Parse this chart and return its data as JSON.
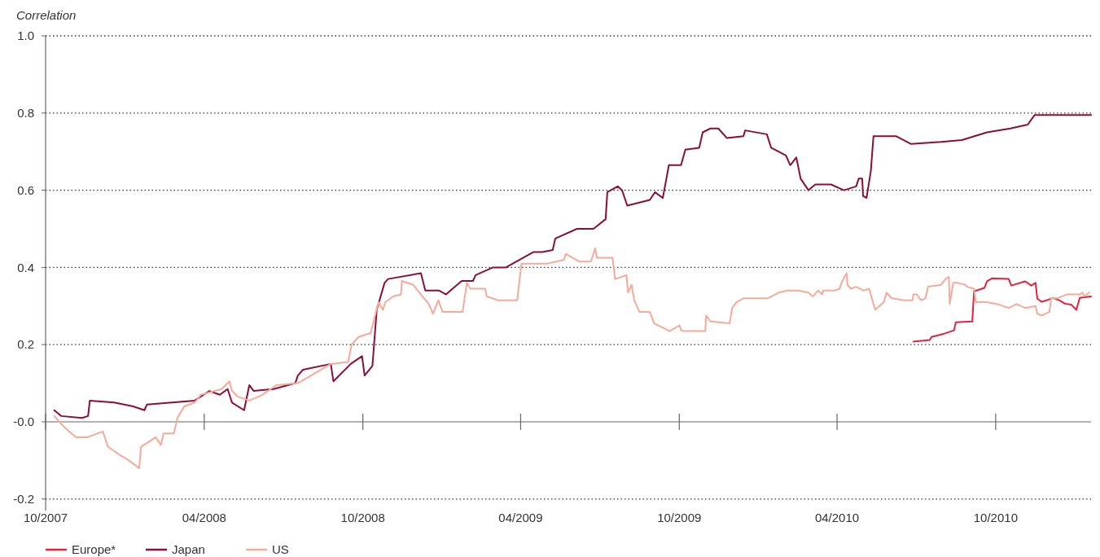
{
  "chart_data": {
    "type": "line",
    "ylabel": "Correlation",
    "xlim": [
      "2007-10-01",
      "2011-01-19"
    ],
    "xticks": [
      {
        "value": "2007-10-01",
        "label": "10/2007"
      },
      {
        "value": "2008-04-01",
        "label": "04/2008"
      },
      {
        "value": "2008-10-01",
        "label": "10/2008"
      },
      {
        "value": "2009-04-01",
        "label": "04/2009"
      },
      {
        "value": "2009-10-01",
        "label": "10/2009"
      },
      {
        "value": "2010-04-01",
        "label": "04/2010"
      },
      {
        "value": "2010-10-01",
        "label": "10/2010"
      }
    ],
    "ylim": [
      -0.23,
      1.0
    ],
    "yticks": [
      -0.2,
      {
        "value": 0,
        "label": "-0.0"
      },
      0.2,
      0.4,
      0.6,
      0.8,
      {
        "value": 1,
        "label": "1.0"
      }
    ],
    "grid": "y",
    "legend": "bottom left",
    "marker": "none",
    "line_style": "solid",
    "series": [
      {
        "name": "Europe*",
        "color": "#e8203a",
        "x": [
          "2010-06-28",
          "2010-07-17",
          "2010-07-19",
          "2010-08-02",
          "2010-08-14",
          "2010-08-16",
          "2010-09-04",
          "2010-09-06",
          "2010-09-18",
          "2010-09-21",
          "2010-09-27",
          "2010-10-16",
          "2010-10-19",
          "2010-11-04",
          "2010-11-11",
          "2010-11-16",
          "2010-11-18",
          "2010-11-23",
          "2010-11-29",
          "2010-12-06",
          "2010-12-13",
          "2010-12-20",
          "2010-12-27",
          "2011-01-02",
          "2011-01-06",
          "2011-01-19"
        ],
        "values": [
          0.208,
          0.212,
          0.22,
          0.228,
          0.237,
          0.258,
          0.26,
          0.338,
          0.347,
          0.364,
          0.372,
          0.37,
          0.353,
          0.364,
          0.353,
          0.36,
          0.319,
          0.311,
          0.315,
          0.321,
          0.315,
          0.306,
          0.304,
          0.29,
          0.321,
          0.325
        ]
      },
      {
        "name": "Japan",
        "color": "#8b0d3a",
        "x": [
          "2007-10-11",
          "2007-10-19",
          "2007-11-12",
          "2007-11-19",
          "2007-11-21",
          "2007-12-19",
          "2008-01-10",
          "2008-01-23",
          "2008-01-26",
          "2008-03-21",
          "2008-04-07",
          "2008-04-19",
          "2008-04-28",
          "2008-05-03",
          "2008-05-17",
          "2008-05-23",
          "2008-05-28",
          "2008-06-20",
          "2008-07-15",
          "2008-07-18",
          "2008-07-24",
          "2008-08-25",
          "2008-08-28",
          "2008-09-17",
          "2008-09-30",
          "2008-10-03",
          "2008-10-12",
          "2008-10-17",
          "2008-10-26",
          "2008-10-30",
          "2008-12-07",
          "2008-12-12",
          "2008-12-28",
          "2009-01-05",
          "2009-01-10",
          "2009-01-23",
          "2009-02-05",
          "2009-02-08",
          "2009-02-28",
          "2009-03-15",
          "2009-03-31",
          "2009-04-16",
          "2009-04-26",
          "2009-05-08",
          "2009-05-11",
          "2009-06-05",
          "2009-06-24",
          "2009-07-08",
          "2009-07-10",
          "2009-07-22",
          "2009-07-27",
          "2009-08-02",
          "2009-08-28",
          "2009-09-03",
          "2009-09-12",
          "2009-09-19",
          "2009-10-03",
          "2009-10-08",
          "2009-10-24",
          "2009-10-28",
          "2009-11-06",
          "2009-11-15",
          "2009-11-25",
          "2009-12-14",
          "2009-12-16",
          "2010-01-10",
          "2010-01-15",
          "2010-02-01",
          "2010-02-06",
          "2010-02-13",
          "2010-02-18",
          "2010-02-27",
          "2010-03-07",
          "2010-03-25",
          "2010-04-09",
          "2010-04-23",
          "2010-04-26",
          "2010-04-30",
          "2010-05-01",
          "2010-05-05",
          "2010-05-10",
          "2010-05-13",
          "2010-06-08",
          "2010-06-25",
          "2010-07-30",
          "2010-08-23",
          "2010-09-21",
          "2010-10-18",
          "2010-11-07",
          "2010-11-15",
          "2011-01-19"
        ],
        "values": [
          0.03,
          0.015,
          0.01,
          0.015,
          0.055,
          0.05,
          0.04,
          0.03,
          0.045,
          0.055,
          0.08,
          0.07,
          0.085,
          0.05,
          0.03,
          0.095,
          0.08,
          0.085,
          0.1,
          0.12,
          0.135,
          0.15,
          0.105,
          0.15,
          0.17,
          0.12,
          0.145,
          0.29,
          0.36,
          0.37,
          0.385,
          0.34,
          0.34,
          0.33,
          0.34,
          0.365,
          0.365,
          0.38,
          0.4,
          0.4,
          0.42,
          0.44,
          0.44,
          0.445,
          0.475,
          0.5,
          0.5,
          0.525,
          0.595,
          0.61,
          0.6,
          0.56,
          0.575,
          0.595,
          0.58,
          0.665,
          0.665,
          0.705,
          0.71,
          0.75,
          0.76,
          0.76,
          0.735,
          0.74,
          0.755,
          0.745,
          0.71,
          0.69,
          0.665,
          0.685,
          0.63,
          0.6,
          0.615,
          0.615,
          0.6,
          0.61,
          0.63,
          0.63,
          0.585,
          0.58,
          0.65,
          0.74,
          0.74,
          0.72,
          0.725,
          0.73,
          0.75,
          0.76,
          0.77,
          0.795,
          0.795
        ]
      },
      {
        "name": "US",
        "color": "#f7a99a",
        "x": [
          "2007-10-11",
          "2007-10-23",
          "2007-11-05",
          "2007-11-18",
          "2007-12-06",
          "2007-12-12",
          "2007-12-25",
          "2008-01-05",
          "2008-01-17",
          "2008-01-19",
          "2008-02-05",
          "2008-02-11",
          "2008-02-14",
          "2008-02-26",
          "2008-03-01",
          "2008-03-09",
          "2008-03-21",
          "2008-03-28",
          "2008-04-21",
          "2008-04-30",
          "2008-05-03",
          "2008-05-10",
          "2008-05-23",
          "2008-06-07",
          "2008-06-23",
          "2008-07-18",
          "2008-08-25",
          "2008-09-14",
          "2008-09-18",
          "2008-09-26",
          "2008-10-10",
          "2008-10-19",
          "2008-10-24",
          "2008-10-27",
          "2008-11-05",
          "2008-11-14",
          "2008-11-15",
          "2008-11-28",
          "2008-12-07",
          "2008-12-16",
          "2008-12-21",
          "2008-12-27",
          "2009-01-01",
          "2009-01-24",
          "2009-01-29",
          "2009-02-02",
          "2009-02-19",
          "2009-02-21",
          "2009-03-06",
          "2009-03-28",
          "2009-04-02",
          "2009-05-02",
          "2009-05-21",
          "2009-05-23",
          "2009-06-08",
          "2009-06-21",
          "2009-06-26",
          "2009-06-28",
          "2009-07-16",
          "2009-07-19",
          "2009-08-01",
          "2009-08-03",
          "2009-08-07",
          "2009-08-10",
          "2009-08-16",
          "2009-08-28",
          "2009-09-02",
          "2009-09-20",
          "2009-10-01",
          "2009-10-04",
          "2009-10-31",
          "2009-11-01",
          "2009-11-06",
          "2009-11-28",
          "2009-12-01",
          "2009-12-06",
          "2009-12-14",
          "2010-01-11",
          "2010-01-24",
          "2010-02-03",
          "2010-02-15",
          "2010-02-27",
          "2010-03-04",
          "2010-03-10",
          "2010-03-15",
          "2010-03-16",
          "2010-03-29",
          "2010-04-04",
          "2010-04-06",
          "2010-04-12",
          "2010-04-13",
          "2010-04-17",
          "2010-04-23",
          "2010-05-02",
          "2010-05-08",
          "2010-05-15",
          "2010-05-20",
          "2010-05-25",
          "2010-05-28",
          "2010-06-03",
          "2010-06-18",
          "2010-06-27",
          "2010-06-28",
          "2010-07-02",
          "2010-07-07",
          "2010-07-12",
          "2010-07-15",
          "2010-07-30",
          "2010-08-04",
          "2010-08-08",
          "2010-08-09",
          "2010-08-13",
          "2010-08-18",
          "2010-08-27",
          "2010-08-29",
          "2010-09-06",
          "2010-09-08",
          "2010-09-21",
          "2010-10-03",
          "2010-10-16",
          "2010-10-25",
          "2010-11-04",
          "2010-11-16",
          "2010-11-18",
          "2010-11-23",
          "2010-12-02",
          "2010-12-04",
          "2010-12-11",
          "2010-12-22",
          "2011-01-06",
          "2011-01-09",
          "2011-01-11",
          "2011-01-17"
        ],
        "values": [
          0.015,
          -0.015,
          -0.04,
          -0.04,
          -0.025,
          -0.065,
          -0.085,
          -0.1,
          -0.12,
          -0.065,
          -0.04,
          -0.06,
          -0.03,
          -0.03,
          0.01,
          0.04,
          0.05,
          0.07,
          0.085,
          0.105,
          0.08,
          0.065,
          0.055,
          0.07,
          0.095,
          0.1,
          0.15,
          0.155,
          0.2,
          0.22,
          0.23,
          0.31,
          0.29,
          0.31,
          0.325,
          0.33,
          0.365,
          0.355,
          0.33,
          0.305,
          0.28,
          0.315,
          0.285,
          0.285,
          0.36,
          0.345,
          0.345,
          0.325,
          0.315,
          0.315,
          0.41,
          0.41,
          0.42,
          0.435,
          0.415,
          0.415,
          0.45,
          0.425,
          0.425,
          0.37,
          0.38,
          0.335,
          0.355,
          0.315,
          0.285,
          0.285,
          0.255,
          0.235,
          0.25,
          0.235,
          0.235,
          0.275,
          0.26,
          0.255,
          0.295,
          0.31,
          0.32,
          0.32,
          0.335,
          0.34,
          0.34,
          0.335,
          0.325,
          0.34,
          0.33,
          0.34,
          0.34,
          0.345,
          0.36,
          0.385,
          0.355,
          0.345,
          0.35,
          0.34,
          0.345,
          0.29,
          0.3,
          0.31,
          0.335,
          0.32,
          0.315,
          0.315,
          0.33,
          0.33,
          0.315,
          0.32,
          0.35,
          0.355,
          0.37,
          0.375,
          0.305,
          0.36,
          0.36,
          0.355,
          0.35,
          0.345,
          0.31,
          0.31,
          0.305,
          0.295,
          0.305,
          0.295,
          0.3,
          0.28,
          0.275,
          0.285,
          0.32,
          0.32,
          0.33,
          0.33,
          0.335,
          0.325,
          0.335
        ]
      }
    ]
  }
}
